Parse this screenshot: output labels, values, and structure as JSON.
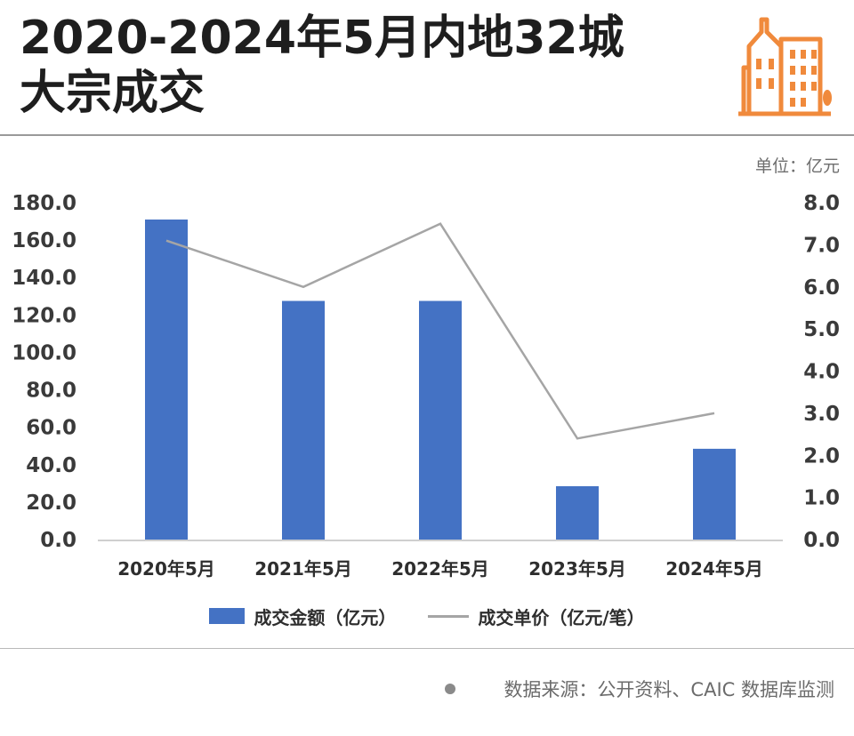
{
  "header": {
    "title_line1": "2020-2024年5月内地32城",
    "title_line2": "大宗成交",
    "icon": "building-icon"
  },
  "unit_label": "单位：亿元",
  "legend": {
    "bar_label": "成交金额（亿元）",
    "line_label": "成交单价（亿元/笔）"
  },
  "source": "数据来源：公开资料、CAIC 数据库监测",
  "colors": {
    "bar": "#4472c4",
    "line": "#a5a5a5",
    "icon": "#f08a3c"
  },
  "chart_data": {
    "type": "bar",
    "categories": [
      "2020年5月",
      "2021年5月",
      "2022年5月",
      "2023年5月",
      "2024年5月"
    ],
    "series": [
      {
        "name": "成交金额（亿元）",
        "type": "bar",
        "axis": "left",
        "values": [
          171.0,
          127.5,
          127.5,
          28.5,
          48.5
        ]
      },
      {
        "name": "成交单价（亿元/笔）",
        "type": "line",
        "axis": "right",
        "values": [
          7.1,
          6.0,
          7.5,
          2.4,
          3.0
        ]
      }
    ],
    "y_left": {
      "lim": [
        0,
        180
      ],
      "ticks": [
        "0.0",
        "20.0",
        "40.0",
        "60.0",
        "80.0",
        "100.0",
        "120.0",
        "140.0",
        "160.0",
        "180.0"
      ]
    },
    "y_right": {
      "lim": [
        0,
        8
      ],
      "ticks": [
        "0.0",
        "1.0",
        "2.0",
        "3.0",
        "4.0",
        "5.0",
        "6.0",
        "7.0",
        "8.0"
      ]
    },
    "grid": false,
    "legend_position": "bottom"
  }
}
